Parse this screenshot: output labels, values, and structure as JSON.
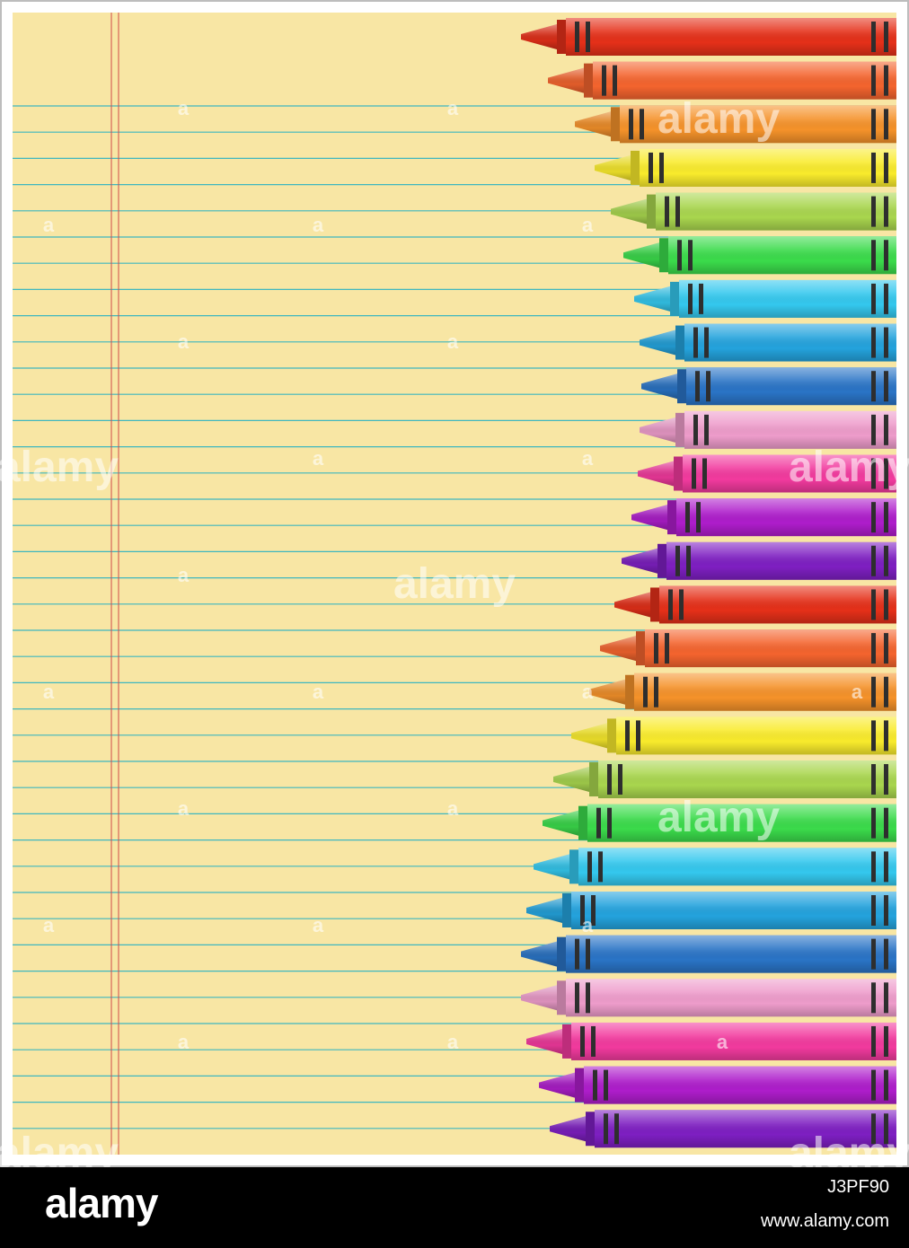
{
  "scene": {
    "paper_color": "#F8E6A4",
    "rule_color": "#3FB7BF",
    "margin_line_color": "#D04A4A",
    "frame_color": "#BDBDBD",
    "crayon_band_color": "#2E2E2E",
    "crayon_colors": [
      "#E53019",
      "#F4642E",
      "#F5922A",
      "#F9EB2C",
      "#A9D64E",
      "#3BDB4B",
      "#34C8EE",
      "#24A3DD",
      "#2A74C6",
      "#EE9CCB",
      "#F23A9E",
      "#AE1DCB",
      "#7E1FC2",
      "#E53019",
      "#F4642E",
      "#F5922A",
      "#F9EB2C",
      "#A9D64E",
      "#3BDB4B",
      "#34C8EE",
      "#24A3DD",
      "#2A74C6",
      "#EE9CCB",
      "#F23A9E",
      "#AE1DCB",
      "#7E1FC2"
    ],
    "watermark_text": "alamy",
    "watermark_mark": "a"
  },
  "footer": {
    "logo": "alamy",
    "image_id": "J3PF90",
    "url": "www.alamy.com"
  }
}
